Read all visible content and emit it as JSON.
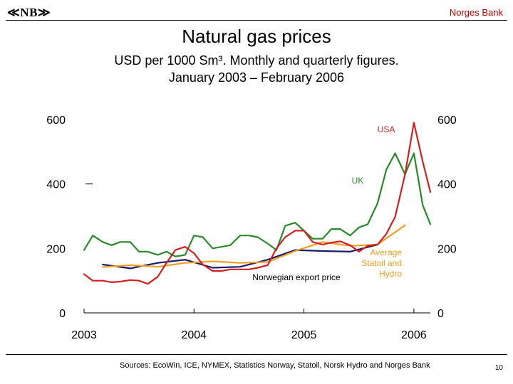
{
  "header": {
    "logo_text": "≪NB≫",
    "bank_name": "Norges Bank"
  },
  "title": "Natural gas prices",
  "subtitle_line1": "USD per 1000 Sm³. Monthly and quarterly figures.",
  "subtitle_line2": "January 2003 – February 2006",
  "footer": {
    "sources": "Sources: EcoWin, ICE, NYMEX, Statistics Norway, Statoil, Norsk Hydro and Norges Bank",
    "page_number": "10"
  },
  "colors": {
    "uk": "#2a8a2a",
    "usa": "#d02020",
    "norwegian": "#1a1a6e",
    "average": "#f0a020",
    "bank_name": "#c00000"
  },
  "chart_data": {
    "type": "line",
    "title": "Natural gas prices",
    "x_tick_labels": [
      "2003",
      "2004",
      "2005",
      "2006"
    ],
    "y_ticks": [
      0,
      200,
      400,
      600
    ],
    "y_tick_labels_left": [
      "0",
      "200",
      "400",
      "600"
    ],
    "y_tick_labels_right": [
      "0",
      "200",
      "400",
      "600"
    ],
    "ylim": [
      0,
      600
    ],
    "xlim": [
      2003.0,
      2006.15
    ],
    "grid": false,
    "series": [
      {
        "name": "UK",
        "label": "UK",
        "color_key": "uk",
        "x": [
          2003.0,
          2003.08,
          2003.17,
          2003.25,
          2003.33,
          2003.42,
          2003.5,
          2003.58,
          2003.67,
          2003.75,
          2003.83,
          2003.92,
          2004.0,
          2004.08,
          2004.17,
          2004.25,
          2004.33,
          2004.42,
          2004.5,
          2004.58,
          2004.67,
          2004.75,
          2004.83,
          2004.92,
          2005.0,
          2005.08,
          2005.17,
          2005.25,
          2005.33,
          2005.42,
          2005.5,
          2005.58,
          2005.67,
          2005.75,
          2005.83,
          2005.92,
          2006.0,
          2006.08,
          2006.15
        ],
        "values": [
          195,
          240,
          220,
          210,
          220,
          220,
          190,
          190,
          180,
          190,
          175,
          180,
          240,
          235,
          200,
          205,
          210,
          240,
          240,
          235,
          215,
          195,
          270,
          280,
          255,
          230,
          230,
          260,
          260,
          240,
          265,
          275,
          340,
          445,
          495,
          430,
          495,
          335,
          275
        ]
      },
      {
        "name": "USA",
        "label": "USA",
        "color_key": "usa",
        "x": [
          2003.0,
          2003.08,
          2003.17,
          2003.25,
          2003.33,
          2003.42,
          2003.5,
          2003.58,
          2003.67,
          2003.75,
          2003.83,
          2003.92,
          2004.0,
          2004.08,
          2004.17,
          2004.25,
          2004.33,
          2004.42,
          2004.5,
          2004.58,
          2004.67,
          2004.75,
          2004.83,
          2004.92,
          2005.0,
          2005.08,
          2005.17,
          2005.25,
          2005.33,
          2005.42,
          2005.5,
          2005.58,
          2005.67,
          2005.75,
          2005.83,
          2005.92,
          2006.0,
          2006.08,
          2006.15
        ],
        "values": [
          120,
          100,
          100,
          95,
          97,
          102,
          100,
          90,
          112,
          155,
          195,
          205,
          185,
          150,
          130,
          130,
          135,
          135,
          135,
          140,
          148,
          200,
          235,
          255,
          255,
          220,
          212,
          218,
          222,
          210,
          190,
          208,
          212,
          245,
          298,
          430,
          590,
          470,
          375
        ]
      },
      {
        "name": "Norwegian export price",
        "label": "Norwegian export price",
        "color_key": "norwegian",
        "x": [
          2003.17,
          2003.42,
          2003.67,
          2003.92,
          2004.17,
          2004.42,
          2004.67,
          2004.92,
          2005.17,
          2005.42,
          2005.67
        ],
        "values": [
          150,
          138,
          155,
          165,
          140,
          143,
          165,
          195,
          192,
          190,
          212
        ]
      },
      {
        "name": "Average Statoil and Hydro",
        "label_lines": [
          "Average",
          "Statoil and",
          "Hydro"
        ],
        "color_key": "average",
        "x": [
          2003.17,
          2003.42,
          2003.67,
          2003.92,
          2004.17,
          2004.42,
          2004.67,
          2004.92,
          2005.17,
          2005.42,
          2005.67,
          2005.92
        ],
        "values": [
          142,
          148,
          143,
          155,
          160,
          155,
          158,
          192,
          220,
          208,
          212,
          272
        ]
      }
    ]
  }
}
